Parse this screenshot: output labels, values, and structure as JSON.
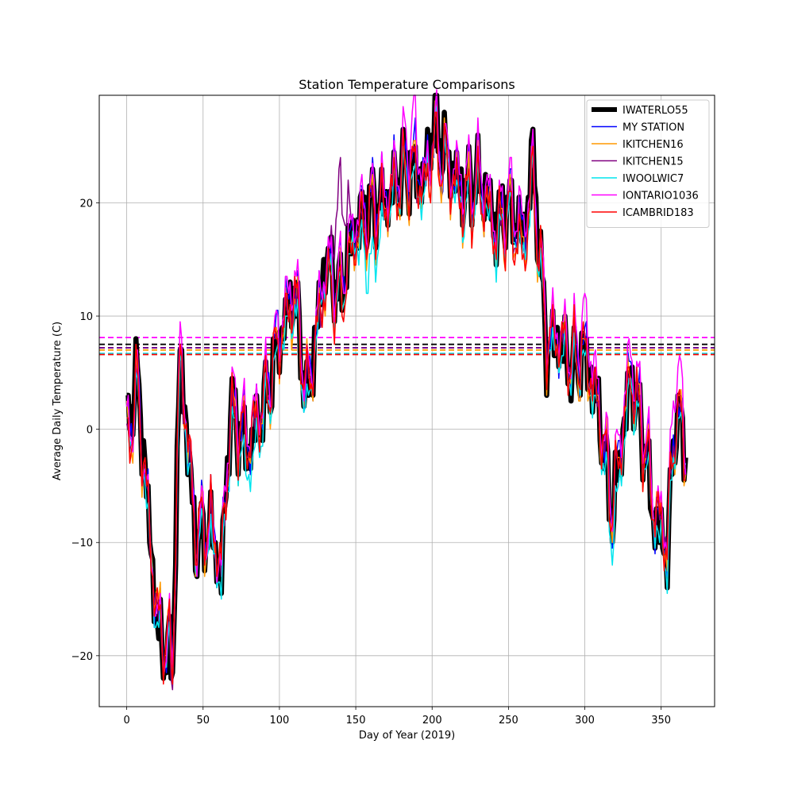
{
  "chart_data": {
    "type": "line",
    "title": "Station Temperature Comparisons",
    "xlabel": "Day of Year (2019)",
    "ylabel": "Average Daily Temperature (C)",
    "xlim": [
      -18,
      385
    ],
    "ylim": [
      -24.5,
      29.5
    ],
    "x_ticks": [
      0,
      50,
      100,
      150,
      200,
      250,
      300,
      350
    ],
    "y_ticks": [
      -20,
      -10,
      0,
      10,
      20
    ],
    "grid": true,
    "legend_position": "top-right",
    "key_days": [
      0,
      7,
      20,
      30,
      35,
      45,
      55,
      62,
      68,
      80,
      92,
      100,
      110,
      118,
      130,
      140,
      150,
      160,
      170,
      180,
      188,
      195,
      201,
      210,
      220,
      232,
      242,
      250,
      260,
      266,
      275,
      283,
      292,
      300,
      310,
      318,
      330,
      340,
      345,
      354,
      360,
      366
    ],
    "series": [
      {
        "name": "IWATERLO55",
        "color": "#000000",
        "linewidth": 6.5,
        "key_values": [
          0,
          5,
          -18,
          -21,
          7,
          -10,
          -9,
          -13,
          2,
          -2,
          3,
          8,
          12,
          2,
          15,
          12,
          18,
          20,
          20,
          23,
          23,
          22,
          27,
          24,
          21,
          22,
          18,
          20,
          17,
          24,
          7,
          8,
          5,
          7,
          1,
          -8,
          5,
          -2,
          -8,
          -11,
          2,
          -2
        ],
        "mean": 7.5
      },
      {
        "name": "MY STATION",
        "color": "#0000ff",
        "linewidth": 1.5,
        "key_values": [
          -1,
          4,
          -17,
          -20,
          6,
          -9,
          -8,
          -12,
          1,
          -1,
          4,
          9,
          12,
          3,
          14,
          13,
          18,
          20,
          21,
          23,
          24,
          22,
          26,
          23,
          21,
          22,
          17,
          20,
          17,
          23,
          8,
          8,
          6,
          7,
          1,
          -7,
          6,
          -1,
          -7,
          -10,
          2,
          -2
        ],
        "mean": 7.2
      },
      {
        "name": "IKITCHEN16",
        "color": "#ff9900",
        "linewidth": 1.5,
        "key_values": [
          -2,
          3,
          -16,
          -21,
          6,
          -9,
          -9,
          -12,
          1,
          -1,
          3,
          8,
          11,
          3,
          13,
          12,
          17,
          19,
          20,
          22,
          23,
          21,
          25,
          23,
          20,
          21,
          17,
          19,
          16,
          22,
          8,
          8,
          6,
          6,
          1,
          -7,
          5,
          -2,
          -6,
          -10,
          2,
          -2
        ],
        "mean": 7.0
      },
      {
        "name": "IKITCHEN15",
        "color": "#800080",
        "linewidth": 1.5,
        "key_values": [
          -2,
          3,
          -17,
          -22,
          6,
          -9,
          -9,
          -13,
          1,
          -1,
          3,
          8,
          12,
          3,
          13,
          21,
          17,
          19,
          20,
          22,
          23,
          21,
          26,
          23,
          20,
          21,
          17,
          19,
          16,
          22,
          8,
          8,
          6,
          7,
          1,
          -7,
          5,
          -2,
          -7,
          -10,
          2,
          -2
        ],
        "mean": 7.2
      },
      {
        "name": "IWOOLWIC7",
        "color": "#00e5ee",
        "linewidth": 1.5,
        "key_values": [
          -2,
          3,
          -18,
          -21,
          6,
          -10,
          -10,
          -14,
          0,
          -4,
          2,
          7,
          11,
          1,
          14,
          11,
          17,
          14,
          19,
          22,
          22,
          20,
          26,
          23,
          19,
          21,
          16,
          19,
          15,
          22,
          7,
          7,
          5,
          6,
          0,
          -10,
          4,
          -3,
          -8,
          -12,
          1,
          -2
        ],
        "mean": 6.7
      },
      {
        "name": "IONTARIO1036",
        "color": "#ff00ff",
        "linewidth": 1.5,
        "key_values": [
          -1,
          4,
          -17,
          -20,
          8,
          -9,
          -8,
          -12,
          3,
          0,
          4,
          9,
          14,
          3,
          15,
          13,
          19,
          20,
          21,
          24,
          27,
          22,
          26,
          24,
          22,
          23,
          18,
          21,
          18,
          23,
          9,
          9,
          7,
          10,
          2,
          -6,
          7,
          0,
          -6,
          -9,
          7,
          -1
        ],
        "mean": 8.1
      },
      {
        "name": "ICAMBRID183",
        "color": "#ff0000",
        "linewidth": 1.5,
        "key_values": [
          -2,
          4,
          -17,
          -20,
          7,
          -9,
          -8,
          -12,
          1,
          -1,
          3,
          8,
          12,
          3,
          13,
          11,
          17,
          19,
          20,
          22,
          23,
          21,
          25,
          23,
          20,
          21,
          17,
          19,
          15,
          22,
          8,
          8,
          6,
          7,
          1,
          -7,
          5,
          -2,
          -7,
          -10,
          2,
          -2
        ],
        "mean": 6.6
      }
    ]
  }
}
